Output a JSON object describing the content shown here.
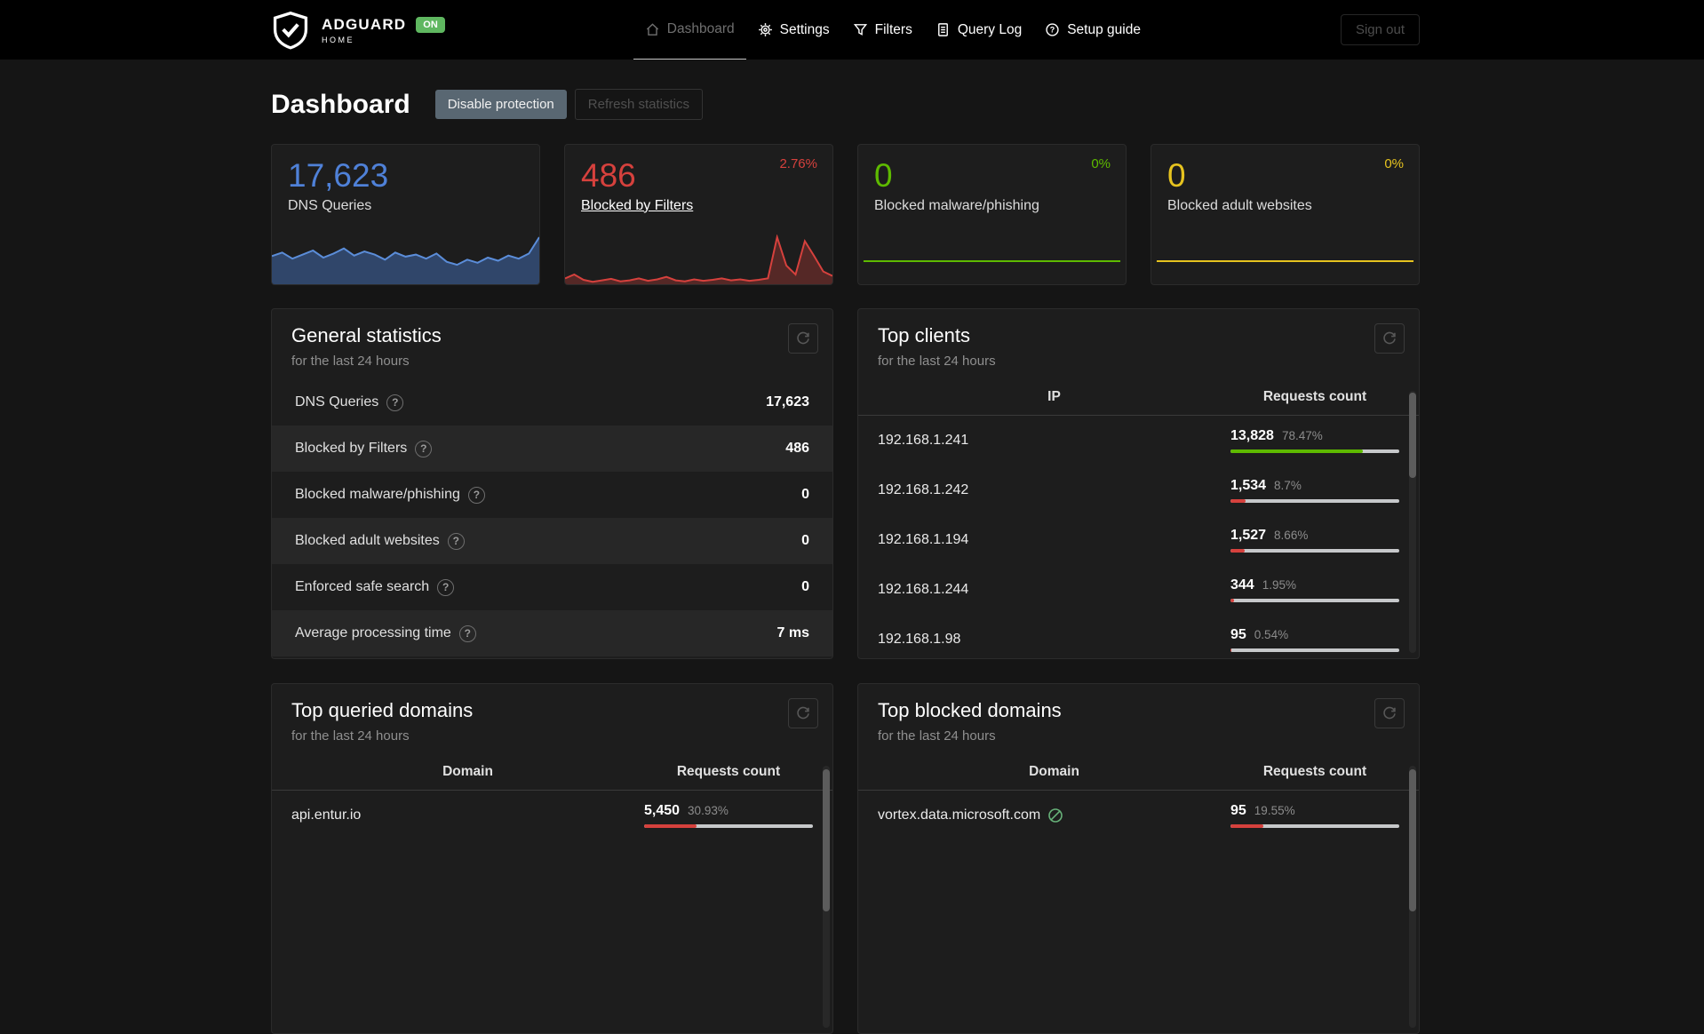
{
  "header": {
    "brand": {
      "name": "ADGUARD",
      "sub": "HOME",
      "badge": "ON",
      "badge_color": "#5fb760"
    },
    "nav": [
      {
        "label": "Dashboard",
        "icon": "dashboard-icon",
        "active": true
      },
      {
        "label": "Settings",
        "icon": "gear-icon",
        "active": false
      },
      {
        "label": "Filters",
        "icon": "filter-icon",
        "active": false
      },
      {
        "label": "Query Log",
        "icon": "query-log-icon",
        "active": false
      },
      {
        "label": "Setup guide",
        "icon": "help-icon",
        "active": false
      }
    ],
    "sign_out": "Sign out"
  },
  "page": {
    "title": "Dashboard",
    "disable_protection": "Disable protection",
    "refresh_statistics": "Refresh statistics"
  },
  "stat_cards": [
    {
      "value": "17,623",
      "label": "DNS Queries",
      "percent": "",
      "color": "#4f81d8"
    },
    {
      "value": "486",
      "label": "Blocked by Filters",
      "percent": "2.76%",
      "color": "#d6413d",
      "label_link": true
    },
    {
      "value": "0",
      "label": "Blocked malware/phishing",
      "percent": "0%",
      "color": "#5eba00"
    },
    {
      "value": "0",
      "label": "Blocked adult websites",
      "percent": "0%",
      "color": "#e6c31f"
    }
  ],
  "chart_data": [
    {
      "type": "area",
      "label": "DNS Queries (last 24 hours)",
      "color": "#5b8dd9",
      "fill": "rgba(74,123,201,0.45)",
      "values": [
        55,
        62,
        50,
        58,
        66,
        52,
        60,
        70,
        56,
        64,
        58,
        48,
        62,
        54,
        58,
        50,
        60,
        44,
        38,
        48,
        42,
        52,
        46,
        56,
        50,
        60,
        92
      ]
    },
    {
      "type": "area",
      "label": "Blocked by Filters (last 24 hours)",
      "color": "#d6413d",
      "fill": "rgba(214,65,61,0.3)",
      "values": [
        12,
        20,
        9,
        5,
        8,
        11,
        6,
        8,
        12,
        7,
        10,
        15,
        8,
        6,
        10,
        7,
        9,
        12,
        8,
        10,
        7,
        9,
        12,
        96,
        38,
        20,
        88,
        58,
        26,
        17
      ]
    },
    {
      "type": "line",
      "label": "Blocked malware/phishing (last 24 hours)",
      "color": "#5eba00",
      "fill": "none",
      "values": [
        0,
        0,
        0,
        0,
        0,
        0,
        0,
        0,
        0,
        0
      ]
    },
    {
      "type": "line",
      "label": "Blocked adult websites (last 24 hours)",
      "color": "#e6c31f",
      "fill": "none",
      "values": [
        0,
        0,
        0,
        0,
        0,
        0,
        0,
        0,
        0,
        0
      ]
    }
  ],
  "general_statistics": {
    "title": "General statistics",
    "subtitle": "for the last 24 hours",
    "rows": [
      {
        "label": "DNS Queries",
        "value": "17,623"
      },
      {
        "label": "Blocked by Filters",
        "value": "486"
      },
      {
        "label": "Blocked malware/phishing",
        "value": "0"
      },
      {
        "label": "Blocked adult websites",
        "value": "0"
      },
      {
        "label": "Enforced safe search",
        "value": "0"
      },
      {
        "label": "Average processing time",
        "value": "7 ms"
      }
    ]
  },
  "top_clients": {
    "title": "Top clients",
    "subtitle": "for the last 24 hours",
    "columns": [
      "IP",
      "Requests count"
    ],
    "rows": [
      {
        "ip": "192.168.1.241",
        "count": "13,828",
        "percent": "78.47%",
        "bar": 78.47,
        "bar_color": "#5eba00"
      },
      {
        "ip": "192.168.1.242",
        "count": "1,534",
        "percent": "8.7%",
        "bar": 8.7,
        "bar_color": "#d6413d"
      },
      {
        "ip": "192.168.1.194",
        "count": "1,527",
        "percent": "8.66%",
        "bar": 8.66,
        "bar_color": "#d6413d"
      },
      {
        "ip": "192.168.1.244",
        "count": "344",
        "percent": "1.95%",
        "bar": 1.95,
        "bar_color": "#d6413d"
      },
      {
        "ip": "192.168.1.98",
        "count": "95",
        "percent": "0.54%",
        "bar": 0.54,
        "bar_color": "#d6413d"
      }
    ]
  },
  "top_queried_domains": {
    "title": "Top queried domains",
    "subtitle": "for the last 24 hours",
    "columns": [
      "Domain",
      "Requests count"
    ],
    "rows": [
      {
        "domain": "api.entur.io",
        "count": "5,450",
        "percent": "30.93%",
        "bar": 30.93,
        "bar_color": "#d6413d",
        "icon": false
      }
    ]
  },
  "top_blocked_domains": {
    "title": "Top blocked domains",
    "subtitle": "for the last 24 hours",
    "columns": [
      "Domain",
      "Requests count"
    ],
    "rows": [
      {
        "domain": "vortex.data.microsoft.com",
        "count": "95",
        "percent": "19.55%",
        "bar": 19.55,
        "bar_color": "#d6413d",
        "icon": true
      }
    ]
  },
  "icon_colors": {
    "blocked_icon": "#67b279"
  }
}
